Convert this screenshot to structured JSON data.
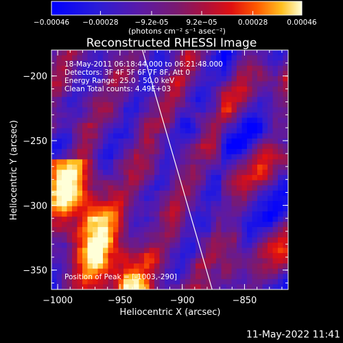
{
  "chart_data": {
    "type": "heatmap",
    "title": "Reconstructed RHESSI Image",
    "xlabel": "Heliocentric X (arcsec)",
    "ylabel": "Heliocentric Y (arcsec)",
    "xlim": [
      -1005,
      -815
    ],
    "ylim": [
      -365,
      -180
    ],
    "xticks": [
      -1000,
      -950,
      -900,
      -850
    ],
    "yticks": [
      -200,
      -250,
      -300,
      -350
    ],
    "colorbar": {
      "min": -0.00046,
      "max": 0.00046,
      "ticks": [
        "-0.00046",
        "-0.00028",
        "-9.2e-05",
        "9.2e-05",
        "0.00028",
        "0.00046"
      ],
      "units": "(photons cm⁻² s⁻¹ asec⁻²)"
    },
    "annotations": [
      "18-May-2011 06:18:44.000 to 06:21:48.000",
      "Detectors: 3F 4F 5F 6F 7F 8F, Att 0",
      "Energy Range: 25.0 - 50.0 keV",
      "Clean     Total counts: 4.49E+03"
    ],
    "peak_label": "Position of Peak = [-1003,-290]",
    "peak": [
      -1003,
      -290
    ],
    "limb_line": [
      [
        -932,
        -180
      ],
      [
        -876,
        -365
      ]
    ]
  },
  "footer_timestamp": "11-May-2022 11:41"
}
